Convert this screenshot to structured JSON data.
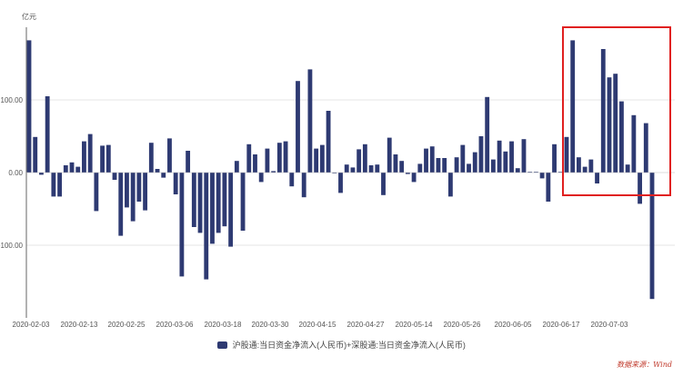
{
  "chart_data": {
    "type": "bar",
    "unit_label": "亿元",
    "legend": "沪股通:当日资金净流入(人民币)+深股通:当日资金净流入(人民币)",
    "series": [
      {
        "color": "#2e3a72",
        "values": [
          182,
          49,
          -3,
          105,
          -33,
          -33,
          10,
          14,
          8,
          43,
          53,
          -53,
          37,
          38,
          -10,
          -87,
          -48,
          -67,
          -40,
          -52,
          41,
          5,
          -7,
          47,
          -30,
          -143,
          30,
          -75,
          -83,
          -147,
          -98,
          -83,
          -74,
          -102,
          16,
          -80,
          39,
          25,
          -13,
          33,
          2,
          41,
          43,
          -19,
          126,
          -34,
          142,
          33,
          38,
          85,
          0,
          -28,
          11,
          7,
          32,
          39,
          10,
          11,
          -31,
          48,
          25,
          16,
          -2,
          -13,
          12,
          33,
          36,
          20,
          20,
          -33,
          21,
          38,
          12,
          28,
          50,
          104,
          18,
          44,
          29,
          43,
          6,
          46,
          1,
          1,
          -8,
          -40,
          39,
          1,
          49,
          182,
          21,
          8,
          18,
          -15,
          170,
          131,
          136,
          98,
          11,
          79,
          -43,
          68,
          -174
        ]
      }
    ],
    "x_tick_labels": [
      "2020-02-03",
      "2020-02-13",
      "2020-02-25",
      "2020-03-06",
      "2020-03-18",
      "2020-03-30",
      "2020-04-15",
      "2020-04-27",
      "2020-05-14",
      "2020-05-26",
      "2020-06-05",
      "2020-06-17",
      "2020-07-03"
    ],
    "y_tick_labels": [
      "100.00",
      "0.00",
      "-100.00"
    ],
    "y_ticks": [
      100,
      0,
      -100
    ],
    "ylim": [
      -200,
      200
    ],
    "grid": true,
    "highlight_color": "#e02020",
    "source": "数据来源：Wind"
  }
}
